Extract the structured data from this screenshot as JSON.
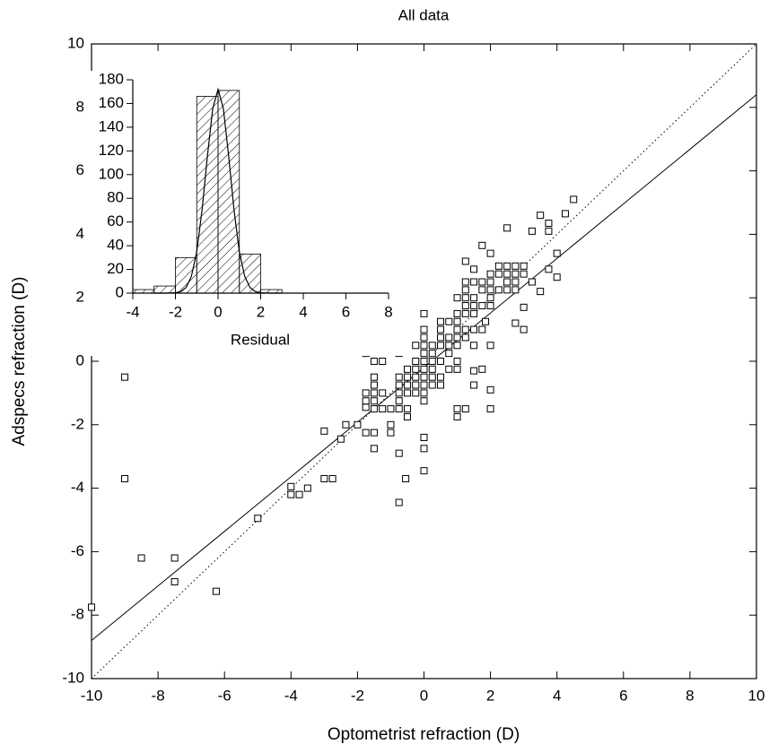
{
  "chart_data": [
    {
      "type": "scatter",
      "title": "All data",
      "xlabel": "Optometrist refraction (D)",
      "ylabel": "Adspecs refraction (D)",
      "xlim": [
        -10,
        10
      ],
      "ylim": [
        -10,
        10
      ],
      "xticks": [
        -10,
        -8,
        -6,
        -4,
        -2,
        0,
        2,
        4,
        6,
        8,
        10
      ],
      "yticks": [
        -10,
        -8,
        -6,
        -4,
        -2,
        0,
        2,
        4,
        6,
        8,
        10
      ],
      "series": [
        {
          "marker": "square",
          "color": "#000000",
          "x": [
            -10,
            -9,
            -9,
            -8.5,
            -7.5,
            -7.5,
            -6.25,
            -5,
            -4,
            -4,
            -3.75,
            -3.5,
            -3,
            -3,
            -2.75,
            -2.5,
            -2.35,
            -2,
            -1.75,
            -1.75,
            -1.5,
            -1.5,
            -0.75,
            -0.75,
            -0.55,
            0,
            0,
            0,
            1.25,
            2,
            2,
            1.5,
            4.5,
            4.25,
            3.5,
            3.75,
            2.5,
            3.75,
            3.25,
            1.75,
            2,
            4,
            1.25,
            1.5,
            3.75,
            4,
            3.5,
            2.75,
            3,
            3,
            1.85,
            1.5,
            -1.75,
            -1.5,
            -1.25,
            -1.5,
            -1.5,
            -1.5,
            -1.5,
            -1.5,
            -1.75,
            -1.75,
            -1.25,
            -1.25,
            -1,
            -1,
            -1,
            -0.75,
            -0.75,
            -0.75,
            -0.75,
            -0.75,
            -0.75,
            -0.5,
            -0.5,
            -0.5,
            -0.5,
            -0.5,
            -0.5,
            -0.25,
            -0.25,
            -0.25,
            -0.25,
            -0.25,
            -0.25,
            0,
            0,
            0,
            0,
            0,
            0,
            0,
            0,
            0,
            0,
            0,
            0.25,
            0.25,
            0.25,
            0.25,
            0.25,
            0.25,
            0.5,
            0.5,
            0.5,
            0.5,
            0.5,
            0.5,
            0.5,
            0.75,
            0.75,
            0.75,
            0.75,
            0.75,
            1,
            1,
            1,
            1,
            1,
            1,
            1,
            1,
            1,
            1,
            1.25,
            1.25,
            1.25,
            1.25,
            1.25,
            1.25,
            1.25,
            1.5,
            1.5,
            1.5,
            1.5,
            1.5,
            1.5,
            1.75,
            1.75,
            1.75,
            1.75,
            1.75,
            2,
            2,
            2,
            2,
            2,
            2,
            2.25,
            2.25,
            2.25,
            2.5,
            2.5,
            2.5,
            2.5,
            2.75,
            2.75,
            2.75,
            2.75,
            3,
            3,
            3.25
          ],
          "values": [
            -7.75,
            -0.5,
            -3.7,
            -6.2,
            -6.2,
            -6.95,
            -7.25,
            -4.95,
            -3.95,
            -4.2,
            -4.2,
            -4,
            -2.2,
            -3.7,
            -3.7,
            -2.45,
            -2,
            -2,
            -1.45,
            -2.25,
            -2.75,
            -2.25,
            -2.9,
            -4.45,
            -3.7,
            -3.45,
            -2.75,
            -2.4,
            -1.5,
            -1.5,
            -0.9,
            -0.75,
            5.1,
            4.65,
            4.6,
            4.35,
            4.2,
            4.1,
            4.1,
            3.65,
            3.4,
            3.4,
            3.15,
            2.9,
            2.9,
            2.65,
            2.2,
            1.2,
            1,
            1.7,
            1.25,
            -0.3,
            0.25,
            0,
            0,
            -0.5,
            -0.75,
            -1,
            -1.25,
            -1.5,
            -1,
            -1.25,
            -1.5,
            -1,
            -1.5,
            -2,
            -2.25,
            -0.5,
            -0.75,
            -1,
            -1.25,
            -1.5,
            0.25,
            -0.25,
            -0.5,
            -0.75,
            -1,
            -1.5,
            -1.75,
            0,
            -0.25,
            -0.5,
            -0.75,
            -1,
            0.5,
            0,
            0.25,
            0.5,
            0.75,
            1,
            1.5,
            -0.25,
            -0.5,
            -0.75,
            -1,
            -1.25,
            0,
            0.25,
            0.5,
            -0.25,
            -0.5,
            -0.75,
            0,
            0.5,
            0.75,
            1,
            -0.5,
            -0.75,
            1.25,
            0.25,
            0.5,
            0.75,
            -0.25,
            1.25,
            0.75,
            1,
            1.25,
            1.5,
            0.5,
            0,
            -0.25,
            2,
            -1.5,
            -1.75,
            1,
            1.5,
            1.75,
            2,
            2.25,
            2.5,
            0.75,
            1,
            1.5,
            2,
            2.5,
            1.75,
            0.5,
            1.75,
            2.5,
            2.25,
            1,
            -0.25,
            2,
            2.25,
            2.5,
            2.75,
            1.75,
            0.5,
            2.25,
            2.75,
            3,
            2.25,
            2.5,
            2.75,
            3,
            2.25,
            2.5,
            2.75,
            3,
            2.75,
            3,
            2.5
          ]
        }
      ],
      "lines": [
        {
          "style": "solid",
          "color": "#000000",
          "x": [
            -10,
            10
          ],
          "values": [
            -8.8,
            8.4
          ]
        },
        {
          "style": "dotted",
          "color": "#000000",
          "x": [
            -10,
            10
          ],
          "values": [
            -10,
            10
          ]
        }
      ]
    },
    {
      "type": "histogram",
      "xlabel": "Residual",
      "xlim": [
        -4,
        8
      ],
      "ylim": [
        0,
        180
      ],
      "xticks": [
        -4,
        -2,
        0,
        2,
        4,
        6,
        8
      ],
      "yticks": [
        0,
        20,
        40,
        60,
        80,
        100,
        120,
        140,
        160,
        180
      ],
      "bins": [
        -4,
        -3,
        -2,
        -1,
        0,
        1,
        2,
        3
      ],
      "counts": [
        3,
        6,
        30,
        166,
        171,
        33,
        3
      ],
      "hatch": true,
      "curve": {
        "x": [
          -3,
          -2.5,
          -2,
          -1.75,
          -1.5,
          -1.25,
          -1,
          -0.75,
          -0.5,
          -0.25,
          0,
          0.25,
          0.5,
          0.75,
          1,
          1.25,
          1.5,
          1.75,
          2,
          2.5,
          3
        ],
        "values": [
          0,
          0,
          0.3,
          1.3,
          4.7,
          14.2,
          34.9,
          70.1,
          115.4,
          155.7,
          172,
          155.7,
          115.4,
          70.1,
          34.9,
          14.2,
          4.7,
          1.3,
          0.3,
          0,
          0
        ]
      }
    }
  ]
}
